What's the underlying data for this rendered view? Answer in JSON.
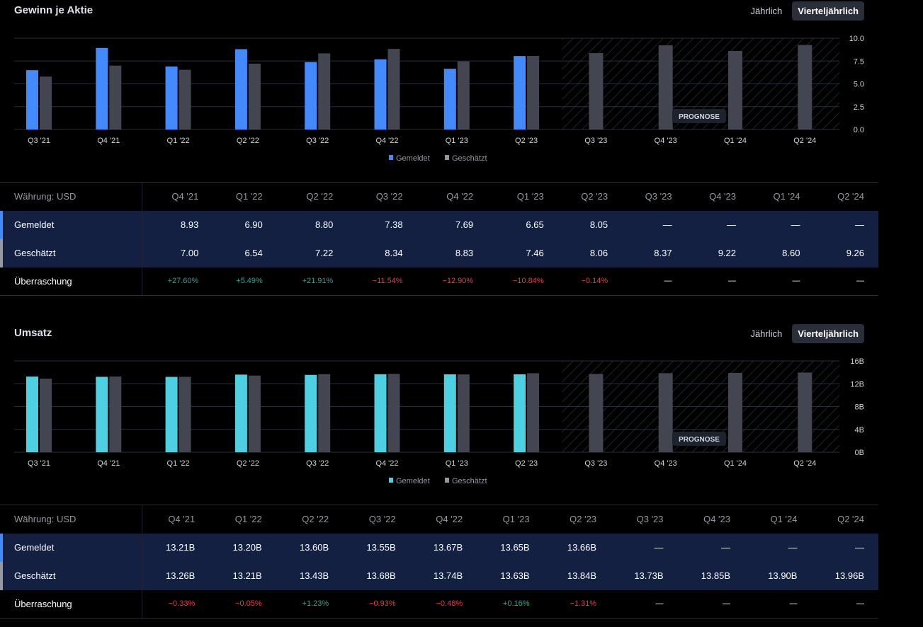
{
  "toggle": {
    "annual": "Jährlich",
    "quarterly": "Vierteljährlich"
  },
  "forecast_label": "PROGNOSE",
  "legend": {
    "reported": "Gemeldet",
    "estimated": "Geschätzt"
  },
  "colors": {
    "eps": "#448aff",
    "revenue": "#4dd0e1",
    "estimate": "#434651",
    "positive": "#22ab94",
    "negative": "#f23645"
  },
  "chart_data": [
    {
      "type": "bar",
      "title": "Gewinn je Aktie",
      "categories": [
        "Q3 '21",
        "Q4 '21",
        "Q1 '22",
        "Q2 '22",
        "Q3 '22",
        "Q4 '22",
        "Q1 '23",
        "Q2 '23",
        "Q3 '23",
        "Q4 '23",
        "Q1 '24",
        "Q2 '24"
      ],
      "series": [
        {
          "name": "Gemeldet",
          "values": [
            6.5,
            8.93,
            6.9,
            8.8,
            7.38,
            7.69,
            6.65,
            8.05,
            null,
            null,
            null,
            null
          ]
        },
        {
          "name": "Geschätzt",
          "values": [
            5.8,
            7.0,
            6.54,
            7.22,
            8.34,
            8.83,
            7.46,
            8.06,
            8.37,
            9.22,
            8.6,
            9.26
          ]
        }
      ],
      "ylim": [
        0,
        10
      ],
      "yticks": [
        "10.0",
        "7.5",
        "5.0",
        "2.5",
        "0.0"
      ],
      "ytick_values": [
        10,
        7.5,
        5,
        2.5,
        0
      ],
      "forecast_from_index": 8,
      "legend_position": "bottom-center"
    },
    {
      "type": "bar",
      "title": "Umsatz",
      "categories": [
        "Q3 '21",
        "Q4 '21",
        "Q1 '22",
        "Q2 '22",
        "Q3 '22",
        "Q4 '22",
        "Q1 '23",
        "Q2 '23",
        "Q3 '23",
        "Q4 '23",
        "Q1 '24",
        "Q2 '24"
      ],
      "series": [
        {
          "name": "Gemeldet",
          "values": [
            13.25,
            13.21,
            13.2,
            13.6,
            13.55,
            13.67,
            13.65,
            13.66,
            null,
            null,
            null,
            null
          ]
        },
        {
          "name": "Geschätzt",
          "values": [
            12.9,
            13.26,
            13.21,
            13.43,
            13.68,
            13.74,
            13.63,
            13.84,
            13.73,
            13.85,
            13.9,
            13.96
          ]
        }
      ],
      "ylim": [
        0,
        16
      ],
      "yticks": [
        "16B",
        "12B",
        "8B",
        "4B",
        "0B"
      ],
      "ytick_values": [
        16,
        12,
        8,
        4,
        0
      ],
      "forecast_from_index": 8,
      "legend_position": "bottom-center"
    }
  ],
  "tables": [
    {
      "currency": "Währung: USD",
      "columns": [
        "Q4 '21",
        "Q1 '22",
        "Q2 '22",
        "Q3 '22",
        "Q4 '22",
        "Q1 '23",
        "Q2 '23",
        "Q3 '23",
        "Q4 '23",
        "Q1 '24",
        "Q2 '24"
      ],
      "rows": [
        {
          "label": "Gemeldet",
          "values": [
            "8.93",
            "6.90",
            "8.80",
            "7.38",
            "7.69",
            "6.65",
            "8.05",
            "—",
            "—",
            "—",
            "—"
          ]
        },
        {
          "label": "Geschätzt",
          "values": [
            "7.00",
            "6.54",
            "7.22",
            "8.34",
            "8.83",
            "7.46",
            "8.06",
            "8.37",
            "9.22",
            "8.60",
            "9.26"
          ]
        },
        {
          "label": "Überraschung",
          "values": [
            "+27.60%",
            "+5.49%",
            "+21.91%",
            "−11.54%",
            "−12.90%",
            "−10.84%",
            "−0.14%",
            "—",
            "—",
            "—",
            "—"
          ]
        }
      ]
    },
    {
      "currency": "Währung: USD",
      "columns": [
        "Q4 '21",
        "Q1 '22",
        "Q2 '22",
        "Q3 '22",
        "Q4 '22",
        "Q1 '23",
        "Q2 '23",
        "Q3 '23",
        "Q4 '23",
        "Q1 '24",
        "Q2 '24"
      ],
      "rows": [
        {
          "label": "Gemeldet",
          "values": [
            "13.21B",
            "13.20B",
            "13.60B",
            "13.55B",
            "13.67B",
            "13.65B",
            "13.66B",
            "—",
            "—",
            "—",
            "—"
          ]
        },
        {
          "label": "Geschätzt",
          "values": [
            "13.26B",
            "13.21B",
            "13.43B",
            "13.68B",
            "13.74B",
            "13.63B",
            "13.84B",
            "13.73B",
            "13.85B",
            "13.90B",
            "13.96B"
          ]
        },
        {
          "label": "Überraschung",
          "values": [
            "−0.33%",
            "−0.05%",
            "+1.23%",
            "−0.93%",
            "−0.48%",
            "+0.16%",
            "−1.31%",
            "—",
            "—",
            "—",
            "—"
          ]
        }
      ]
    }
  ]
}
